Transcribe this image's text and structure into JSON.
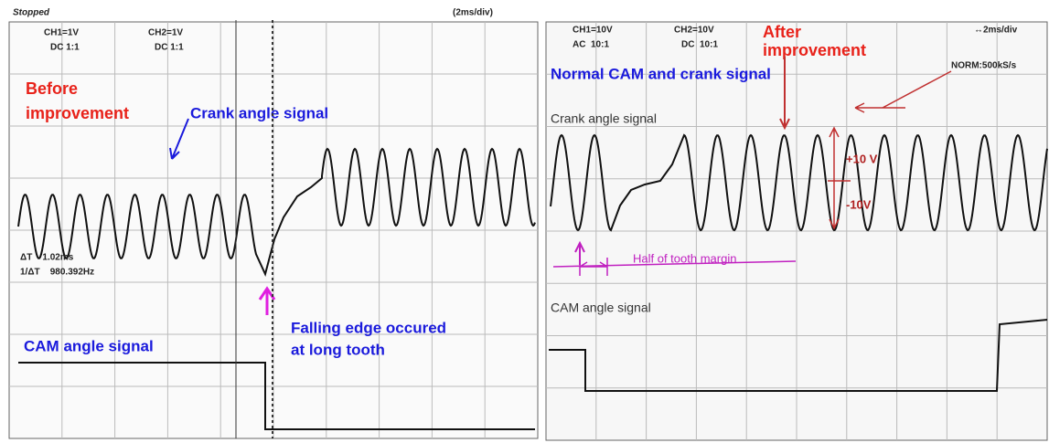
{
  "left": {
    "status": "Stopped",
    "timebase": "(2ms/div)",
    "ch1": "CH1=1V",
    "ch1_coupling": "DC 1:1",
    "ch2": "CH2=1V",
    "ch2_coupling": "DC 1:1",
    "before_label": [
      "Before",
      "improvement"
    ],
    "crank_label": "Crank angle signal",
    "delta_t": "ΔT    1.02ms",
    "inv_delta_t": "1/ΔT    980.392Hz",
    "falling_label": [
      "Falling edge occured",
      "at long tooth"
    ],
    "cam_label": "CAM angle signal"
  },
  "right": {
    "ch1": "CH1=10V",
    "ch1_coupling": "AC  10:1",
    "ch2": "CH2=10V",
    "ch2_coupling": "DC  10:1",
    "after_label": [
      "After",
      "improvement"
    ],
    "timebase": "↔2ms/div",
    "sample": "NORM:500kS/s",
    "normal_label": "Normal CAM and crank signal",
    "crank_label": "Crank angle signal",
    "plus_label": "+10 V",
    "minus_label": "-10V",
    "margin_label": "Half of tooth margin",
    "cam_label": "CAM angle signal"
  }
}
